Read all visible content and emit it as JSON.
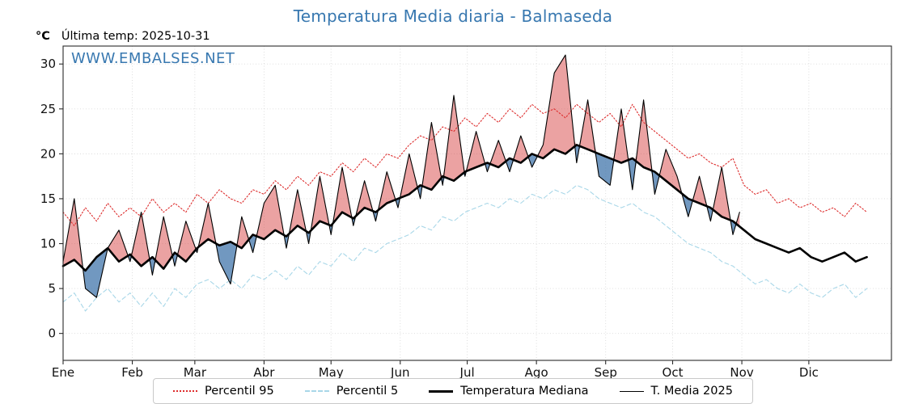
{
  "title": "Temperatura Media diaria - Balmaseda",
  "unit_label": "°C",
  "last_temp_label": "Última temp: 2025-10-31",
  "watermark": "WWW.EMBALSES.NET",
  "colors": {
    "accent": "#3878b0",
    "percentil95": "#dd2c2c",
    "percentil5": "#a8d7e8",
    "median": "#000000",
    "current": "#000000"
  },
  "legend": [
    {
      "label": "Percentil 95",
      "color": "#dd2c2c",
      "line": "dotted"
    },
    {
      "label": "Percentil 5",
      "color": "#a8d7e8",
      "line": "dashed"
    },
    {
      "label": "Temperatura Mediana",
      "color": "#000000",
      "line": "thick"
    },
    {
      "label": "T. Media 2025",
      "color": "#000000",
      "line": "thin"
    }
  ],
  "chart_data": {
    "type": "line",
    "title": "Temperatura Media diaria - Balmaseda",
    "xlabel": "",
    "ylabel": "°C",
    "xlim": [
      1,
      372
    ],
    "ylim": [
      -3,
      32
    ],
    "yticks": [
      0,
      5,
      10,
      15,
      20,
      25,
      30
    ],
    "grid_color": "#dadada",
    "fill_above": "rgba(216,70,70,0.5)",
    "fill_below": "rgba(58,112,168,0.72)",
    "months": [
      {
        "label": "Ene",
        "day": 1
      },
      {
        "label": "Feb",
        "day": 32
      },
      {
        "label": "Mar",
        "day": 60
      },
      {
        "label": "Abr",
        "day": 91
      },
      {
        "label": "May",
        "day": 121
      },
      {
        "label": "Jun",
        "day": 152
      },
      {
        "label": "Jul",
        "day": 182
      },
      {
        "label": "Ago",
        "day": 213
      },
      {
        "label": "Sep",
        "day": 244
      },
      {
        "label": "Oct",
        "day": 274
      },
      {
        "label": "Nov",
        "day": 305
      },
      {
        "label": "Dic",
        "day": 335
      }
    ],
    "sample_days": [
      1,
      6,
      11,
      16,
      21,
      26,
      31,
      36,
      41,
      46,
      51,
      56,
      61,
      66,
      71,
      76,
      81,
      86,
      91,
      96,
      101,
      106,
      111,
      116,
      121,
      126,
      131,
      136,
      141,
      146,
      151,
      156,
      161,
      166,
      171,
      176,
      181,
      186,
      191,
      196,
      201,
      206,
      211,
      216,
      221,
      226,
      231,
      236,
      241,
      246,
      251,
      256,
      261,
      266,
      271,
      276,
      281,
      286,
      291,
      296,
      301,
      306,
      311,
      316,
      321,
      326,
      331,
      336,
      341,
      346,
      351,
      356,
      361
    ],
    "series": [
      {
        "name": "Percentil 95",
        "role": "p95",
        "color": "#dd2c2c",
        "dash": "dotted",
        "width": 1.1,
        "values": [
          13.5,
          12.0,
          14.0,
          12.5,
          14.5,
          13.0,
          14.0,
          13.0,
          15.0,
          13.5,
          14.5,
          13.5,
          15.5,
          14.5,
          16.0,
          15.0,
          14.5,
          16.0,
          15.5,
          17.0,
          16.0,
          17.5,
          16.5,
          18.0,
          17.5,
          19.0,
          18.0,
          19.5,
          18.5,
          20.0,
          19.5,
          21.0,
          22.0,
          21.5,
          23.0,
          22.5,
          24.0,
          23.0,
          24.5,
          23.5,
          25.0,
          24.0,
          25.5,
          24.5,
          25.0,
          24.0,
          25.5,
          24.5,
          23.5,
          24.5,
          23.0,
          25.5,
          23.5,
          22.5,
          21.5,
          20.5,
          19.5,
          20.0,
          19.0,
          18.5,
          19.5,
          16.5,
          15.5,
          16.0,
          14.5,
          15.0,
          14.0,
          14.5,
          13.5,
          14.0,
          13.0,
          14.5,
          13.5
        ]
      },
      {
        "name": "Percentil 5",
        "role": "p5",
        "color": "#a8d7e8",
        "dash": "dashed",
        "width": 1.1,
        "values": [
          3.5,
          4.5,
          2.5,
          4.0,
          5.0,
          3.5,
          4.5,
          3.0,
          4.5,
          3.0,
          5.0,
          4.0,
          5.5,
          6.0,
          5.0,
          6.0,
          5.0,
          6.5,
          6.0,
          7.0,
          6.0,
          7.5,
          6.5,
          8.0,
          7.5,
          9.0,
          8.0,
          9.5,
          9.0,
          10.0,
          10.5,
          11.0,
          12.0,
          11.5,
          13.0,
          12.5,
          13.5,
          14.0,
          14.5,
          14.0,
          15.0,
          14.5,
          15.5,
          15.0,
          16.0,
          15.5,
          16.5,
          16.0,
          15.0,
          14.5,
          14.0,
          14.5,
          13.5,
          13.0,
          12.0,
          11.0,
          10.0,
          9.5,
          9.0,
          8.0,
          7.5,
          6.5,
          5.5,
          6.0,
          5.0,
          4.5,
          5.5,
          4.5,
          4.0,
          5.0,
          5.5,
          4.0,
          5.0
        ]
      },
      {
        "name": "Temperatura Mediana",
        "role": "median",
        "color": "#000000",
        "dash": "solid",
        "width": 2.6,
        "values": [
          7.5,
          8.2,
          7.0,
          8.5,
          9.5,
          8.0,
          8.8,
          7.5,
          8.5,
          7.2,
          9.0,
          8.0,
          9.5,
          10.5,
          9.8,
          10.2,
          9.5,
          11.0,
          10.5,
          11.5,
          10.8,
          12.0,
          11.2,
          12.5,
          12.0,
          13.5,
          12.8,
          14.0,
          13.5,
          14.5,
          15.0,
          15.5,
          16.5,
          16.0,
          17.5,
          17.0,
          18.0,
          18.5,
          19.0,
          18.5,
          19.5,
          19.0,
          20.0,
          19.5,
          20.5,
          20.0,
          21.0,
          20.5,
          20.0,
          19.5,
          19.0,
          19.5,
          18.5,
          18.0,
          17.0,
          16.0,
          15.0,
          14.5,
          14.0,
          13.0,
          12.5,
          11.5,
          10.5,
          10.0,
          9.5,
          9.0,
          9.5,
          8.5,
          8.0,
          8.5,
          9.0,
          8.0,
          8.5
        ]
      },
      {
        "name": "T. Media 2025",
        "role": "current",
        "color": "#000000",
        "dash": "solid",
        "width": 1.1,
        "days": [
          1,
          6,
          11,
          16,
          21,
          26,
          31,
          36,
          41,
          46,
          51,
          56,
          61,
          66,
          71,
          76,
          81,
          86,
          91,
          96,
          101,
          106,
          111,
          116,
          121,
          126,
          131,
          136,
          141,
          146,
          151,
          156,
          161,
          166,
          171,
          176,
          181,
          186,
          191,
          196,
          201,
          206,
          211,
          216,
          221,
          226,
          231,
          236,
          241,
          246,
          251,
          256,
          261,
          266,
          271,
          276,
          281,
          286,
          291,
          296,
          301,
          304
        ],
        "values": [
          8.0,
          15.0,
          5.0,
          4.0,
          9.5,
          11.5,
          8.0,
          13.5,
          6.5,
          13.0,
          7.5,
          12.5,
          9.0,
          14.5,
          8.0,
          5.5,
          13.0,
          9.0,
          14.5,
          16.5,
          9.5,
          16.0,
          10.0,
          17.5,
          11.0,
          18.5,
          12.0,
          17.0,
          12.5,
          18.0,
          14.0,
          20.0,
          15.0,
          23.5,
          16.5,
          26.5,
          17.5,
          22.5,
          18.0,
          21.5,
          18.0,
          22.0,
          18.5,
          21.0,
          29.0,
          31.0,
          19.0,
          26.0,
          17.5,
          16.5,
          25.0,
          16.0,
          26.0,
          15.5,
          20.5,
          17.5,
          13.0,
          17.5,
          12.5,
          18.5,
          11.0,
          13.5
        ]
      }
    ]
  }
}
